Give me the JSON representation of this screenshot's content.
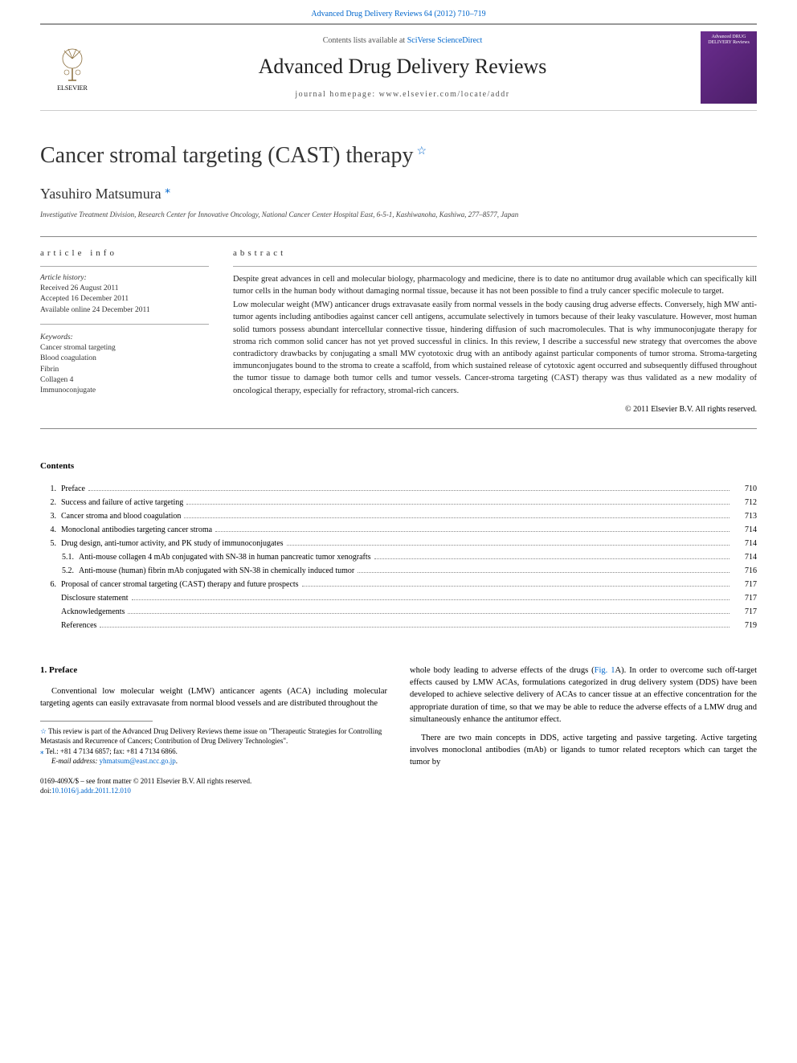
{
  "top_link": "Advanced Drug Delivery Reviews 64 (2012) 710–719",
  "header": {
    "contents_at": "Contents lists available at ",
    "scidirect": "SciVerse ScienceDirect",
    "journal": "Advanced Drug Delivery Reviews",
    "homepage_label": "journal homepage: ",
    "homepage_url": "www.elsevier.com/locate/addr",
    "publisher": "ELSEVIER",
    "cover_text": "Advanced DRUG DELIVERY Reviews"
  },
  "article": {
    "title": "Cancer stromal targeting (CAST) therapy",
    "star": "☆",
    "author": "Yasuhiro Matsumura",
    "corr": "⁎",
    "affiliation": "Investigative Treatment Division, Research Center for Innovative Oncology, National Cancer Center Hospital East, 6-5-1, Kashiwanoha, Kashiwa, 277–8577, Japan"
  },
  "info": {
    "header": "article info",
    "history_label": "Article history:",
    "received": "Received 26 August 2011",
    "accepted": "Accepted 16 December 2011",
    "online": "Available online 24 December 2011",
    "kw_label": "Keywords:",
    "kw": [
      "Cancer stromal targeting",
      "Blood coagulation",
      "Fibrin",
      "Collagen 4",
      "Immunoconjugate"
    ]
  },
  "abstract": {
    "header": "abstract",
    "p1": "Despite great advances in cell and molecular biology, pharmacology and medicine, there is to date no antitumor drug available which can specifically kill tumor cells in the human body without damaging normal tissue, because it has not been possible to find a truly cancer specific molecule to target.",
    "p2": "Low molecular weight (MW) anticancer drugs extravasate easily from normal vessels in the body causing drug adverse effects. Conversely, high MW anti-tumor agents including antibodies against cancer cell antigens, accumulate selectively in tumors because of their leaky vasculature. However, most human solid tumors possess abundant intercellular connective tissue, hindering diffusion of such macromolecules. That is why immunoconjugate therapy for stroma rich common solid cancer has not yet proved successful in clinics. In this review, I describe a successful new strategy that overcomes the above contradictory drawbacks by conjugating a small MW cyototoxic drug with an antibody against particular components of tumor stroma. Stroma-targeting immunconjugates bound to the stroma to create a scaffold, from which sustained release of cytotoxic agent occurred and subsequently diffused throughout the tumor tissue to damage both tumor cells and tumor vessels. Cancer-stroma targeting (CAST) therapy was thus validated as a new modality of oncological therapy, especially for refractory, stromal-rich cancers.",
    "copyright": "© 2011 Elsevier B.V. All rights reserved."
  },
  "toc": {
    "header": "Contents",
    "items": [
      {
        "n": "1.",
        "t": "Preface",
        "p": "710"
      },
      {
        "n": "2.",
        "t": "Success and failure of active targeting",
        "p": "712"
      },
      {
        "n": "3.",
        "t": "Cancer stroma and blood coagulation",
        "p": "713"
      },
      {
        "n": "4.",
        "t": "Monoclonal antibodies targeting cancer stroma",
        "p": "714"
      },
      {
        "n": "5.",
        "t": "Drug design, anti-tumor activity, and PK study of immunoconjugates",
        "p": "714"
      },
      {
        "n": "5.1.",
        "t": "Anti-mouse collagen 4 mAb conjugated with SN-38 in human pancreatic tumor xenografts",
        "p": "714",
        "sub": true
      },
      {
        "n": "5.2.",
        "t": "Anti-mouse (human) fibrin mAb conjugated with SN-38 in chemically induced tumor",
        "p": "716",
        "sub": true
      },
      {
        "n": "6.",
        "t": "Proposal of cancer stromal targeting (CAST) therapy and future prospects",
        "p": "717"
      },
      {
        "n": "",
        "t": "Disclosure statement",
        "p": "717"
      },
      {
        "n": "",
        "t": "Acknowledgements",
        "p": "717"
      },
      {
        "n": "",
        "t": "References",
        "p": "719"
      }
    ]
  },
  "body": {
    "left": {
      "h": "1. Preface",
      "p1": "Conventional low molecular weight (LMW) anticancer agents (ACA) including molecular targeting agents can easily extravasate from normal blood vessels and are distributed throughout the",
      "fn_star": "☆",
      "fn_star_text": " This review is part of the Advanced Drug Delivery Reviews theme issue on \"Therapeutic Strategies for Controlling Metastasis and Recurrence of Cancers; Contribution of Drug Delivery Technologies\".",
      "fn_corr": "⁎",
      "fn_corr_text": " Tel.: +81 4 7134 6857; fax: +81 4 7134 6866.",
      "fn_email_label": "E-mail address: ",
      "fn_email": "yhmatsum@east.ncc.go.jp",
      "front_matter": "0169-409X/$ – see front matter © 2011 Elsevier B.V. All rights reserved.",
      "doi_label": "doi:",
      "doi": "10.1016/j.addr.2011.12.010"
    },
    "right": {
      "p1a": "whole body leading to adverse effects of the drugs (",
      "fig": "Fig. 1",
      "p1b": "A). In order to overcome such off-target effects caused by LMW ACAs, formulations categorized in drug delivery system (DDS) have been developed to achieve selective delivery of ACAs to cancer tissue at an effective concentration for the appropriate duration of time, so that we may be able to reduce the adverse effects of a LMW drug and simultaneously enhance the antitumor effect.",
      "p2": "There are two main concepts in DDS, active targeting and passive targeting. Active targeting involves monoclonal antibodies (mAb) or ligands to tumor related receptors which can target the tumor by"
    }
  }
}
